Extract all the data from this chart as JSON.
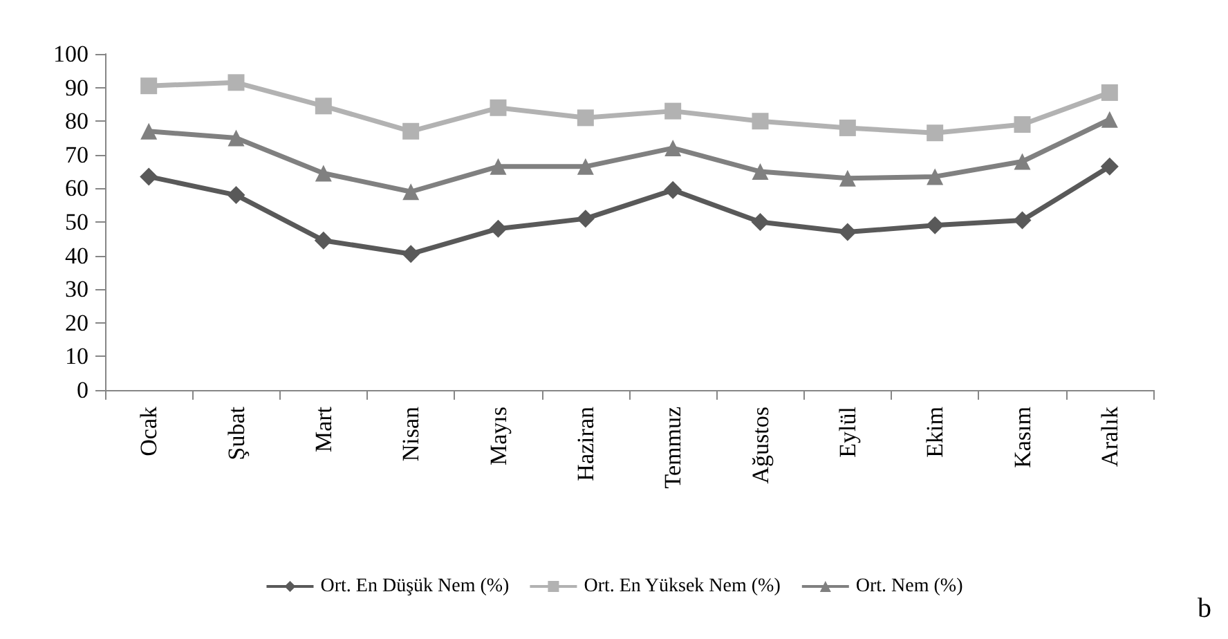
{
  "chart_data": {
    "type": "line",
    "categories": [
      "Ocak",
      "Şubat",
      "Mart",
      "Nisan",
      "Mayıs",
      "Haziran",
      "Temmuz",
      "Ağustos",
      "Eylül",
      "Ekim",
      "Kasım",
      "Aralık"
    ],
    "series": [
      {
        "name": "Ort. En Düşük Nem (%)",
        "color": "#595959",
        "marker": "diamond",
        "values": [
          63.5,
          58,
          44.5,
          40.5,
          48,
          51,
          59.5,
          50,
          47,
          49,
          50.5,
          66.5
        ]
      },
      {
        "name": "Ort. En Yüksek Nem (%)",
        "color": "#b2b2b2",
        "marker": "square",
        "values": [
          90.5,
          91.5,
          84.5,
          77,
          84,
          81,
          83,
          80,
          78,
          76.5,
          79,
          88.5
        ]
      },
      {
        "name": "Ort. Nem (%)",
        "color": "#808080",
        "marker": "triangle",
        "values": [
          77,
          75,
          64.5,
          59,
          66.5,
          66.5,
          72,
          65,
          63,
          63.5,
          68,
          80.5
        ]
      }
    ],
    "ylim": [
      0,
      100
    ],
    "yticks": [
      0,
      10,
      20,
      30,
      40,
      50,
      60,
      70,
      80,
      90,
      100
    ],
    "grid": false,
    "legend": "bottom",
    "line_style": "solid",
    "annotations": [
      "b"
    ]
  }
}
